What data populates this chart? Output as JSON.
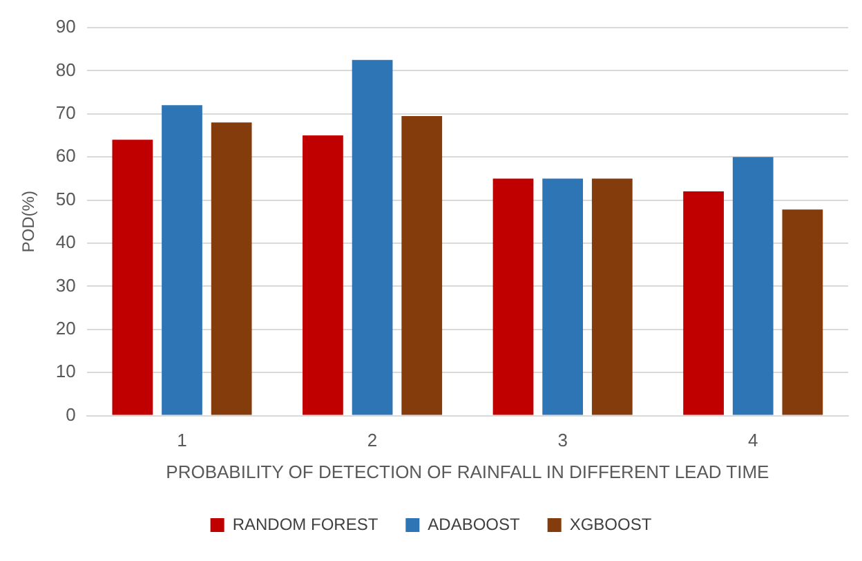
{
  "chart_data": {
    "type": "bar",
    "xlabel": "PROBABILITY OF DETECTION OF RAINFALL IN DIFFERENT LEAD TIME",
    "ylabel": "POD(%)",
    "categories": [
      "1",
      "2",
      "3",
      "4"
    ],
    "series": [
      {
        "name": "RANDOM FOREST",
        "color": "#c00000",
        "values": [
          64,
          65,
          55,
          52
        ]
      },
      {
        "name": "ADABOOST",
        "color": "#2e75b6",
        "values": [
          72,
          82.5,
          55,
          60
        ]
      },
      {
        "name": "XGBOOST",
        "color": "#843c0c",
        "values": [
          68,
          69.5,
          55,
          47.8
        ]
      }
    ],
    "ylim": [
      0,
      90
    ],
    "yticks": [
      0,
      10,
      20,
      30,
      40,
      50,
      60,
      70,
      80,
      90
    ],
    "grid": "y",
    "legend": "bottom"
  }
}
